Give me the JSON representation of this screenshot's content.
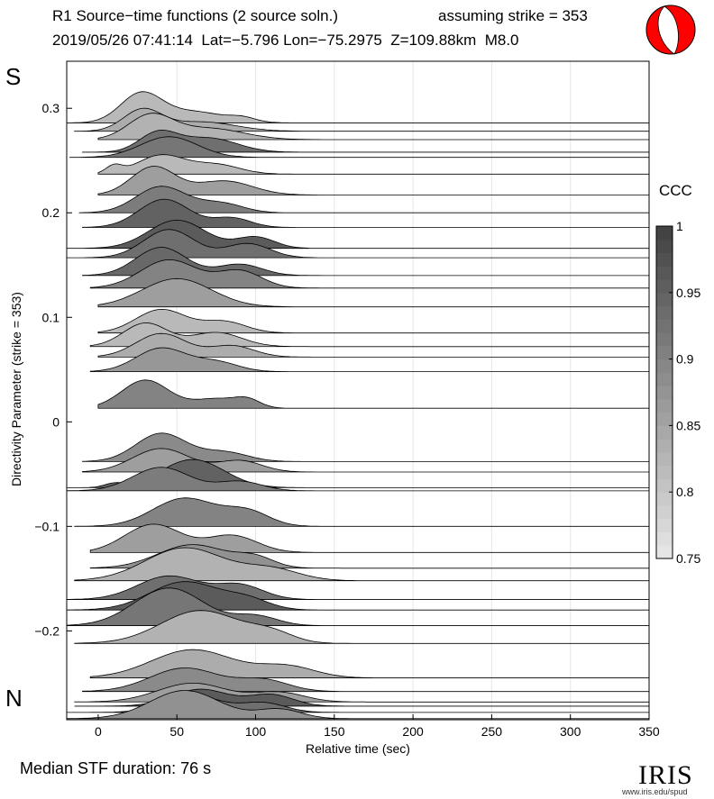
{
  "header": {
    "title": "R1 Source−time functions (2 source soln.)",
    "strike_note": "assuming strike = 353",
    "event_line": "2019/05/26 07:41:14  Lat=−5.796 Lon=−75.2975  Z=109.88km  M8.0"
  },
  "side_labels": {
    "top": "S",
    "bottom": "N"
  },
  "footer": {
    "median": "Median STF duration: 76 s"
  },
  "logo": {
    "text": "IRIS",
    "url": "www.iris.edu/spud"
  },
  "colorbar": {
    "title": "CCC",
    "min": 0.75,
    "max": 1.0,
    "ticks": [
      "0.75",
      "0.8",
      "0.85",
      "0.9",
      "0.95",
      "1"
    ],
    "colors": {
      "low": "#e8e8e8",
      "high": "#404040"
    }
  },
  "beachball": {
    "color": "#ff0000"
  },
  "chart_data": {
    "type": "area",
    "xlabel": "Relative time (sec)",
    "ylabel": "Directivity Parameter (strike = 353)",
    "xlim": [
      -20,
      350
    ],
    "ylim": [
      -0.285,
      0.345
    ],
    "xticks": [
      0,
      50,
      100,
      150,
      200,
      250,
      300,
      350
    ],
    "yticks": [
      -0.2,
      -0.1,
      0,
      0.1,
      0.2,
      0.3
    ],
    "ytick_labels": [
      "−0.2",
      "−0.1",
      "0",
      "0.1",
      "0.2",
      "0.3"
    ],
    "xtick_labels": [
      "0",
      "50",
      "100",
      "150",
      "200",
      "250",
      "300",
      "350"
    ],
    "series": [
      {
        "name": "stf1",
        "baseline": 0.286,
        "start": -20,
        "ccc": 0.82,
        "peaks": [
          [
            27,
            0.03,
            13
          ],
          [
            60,
            0.012,
            20
          ],
          [
            92,
            0.004,
            8
          ]
        ]
      },
      {
        "name": "stf2",
        "baseline": 0.278,
        "start": -15,
        "ccc": 0.84,
        "peaks": [
          [
            28,
            0.022,
            12
          ],
          [
            65,
            0.01,
            22
          ]
        ]
      },
      {
        "name": "stf3",
        "baseline": 0.27,
        "start": 0,
        "ccc": 0.83,
        "peaks": [
          [
            33,
            0.025,
            14
          ],
          [
            70,
            0.012,
            22
          ]
        ]
      },
      {
        "name": "stf4",
        "baseline": 0.258,
        "start": -10,
        "ccc": 0.93,
        "peaks": [
          [
            38,
            0.02,
            12
          ],
          [
            70,
            0.015,
            18
          ]
        ]
      },
      {
        "name": "stf5",
        "baseline": 0.253,
        "start": -18,
        "ccc": 0.92,
        "peaks": [
          [
            45,
            0.022,
            18
          ]
        ]
      },
      {
        "name": "stf6",
        "baseline": 0.237,
        "start": 0,
        "ccc": 0.82,
        "peaks": [
          [
            10,
            0.008,
            5
          ],
          [
            40,
            0.02,
            15
          ],
          [
            75,
            0.01,
            15
          ]
        ]
      },
      {
        "name": "stf7",
        "baseline": 0.217,
        "start": 0,
        "ccc": 0.86,
        "peaks": [
          [
            35,
            0.03,
            14
          ],
          [
            80,
            0.015,
            18
          ]
        ]
      },
      {
        "name": "stf8",
        "baseline": 0.2,
        "start": -12,
        "ccc": 0.91,
        "peaks": [
          [
            40,
            0.028,
            16
          ],
          [
            78,
            0.01,
            14
          ]
        ]
      },
      {
        "name": "stf9",
        "baseline": 0.186,
        "start": -10,
        "ccc": 0.95,
        "peaks": [
          [
            42,
            0.03,
            16
          ],
          [
            85,
            0.01,
            12
          ]
        ]
      },
      {
        "name": "stf10",
        "baseline": 0.166,
        "start": -20,
        "ccc": 0.96,
        "peaks": [
          [
            50,
            0.03,
            18
          ],
          [
            100,
            0.012,
            12
          ]
        ]
      },
      {
        "name": "stf11",
        "baseline": 0.157,
        "start": -20,
        "ccc": 0.93,
        "peaks": [
          [
            45,
            0.03,
            16
          ],
          [
            95,
            0.015,
            14
          ]
        ]
      },
      {
        "name": "stf12",
        "baseline": 0.14,
        "start": -10,
        "ccc": 0.94,
        "peaks": [
          [
            40,
            0.03,
            16
          ],
          [
            90,
            0.012,
            14
          ]
        ]
      },
      {
        "name": "stf13",
        "baseline": 0.128,
        "start": -5,
        "ccc": 0.9,
        "peaks": [
          [
            45,
            0.03,
            18
          ],
          [
            90,
            0.018,
            14
          ]
        ]
      },
      {
        "name": "stf14",
        "baseline": 0.11,
        "start": 0,
        "ccc": 0.86,
        "peaks": [
          [
            50,
            0.03,
            22
          ]
        ]
      },
      {
        "name": "stf15",
        "baseline": 0.085,
        "start": 0,
        "ccc": 0.82,
        "peaks": [
          [
            40,
            0.025,
            16
          ],
          [
            80,
            0.012,
            14
          ]
        ]
      },
      {
        "name": "stf16",
        "baseline": 0.072,
        "start": -5,
        "ccc": 0.82,
        "peaks": [
          [
            30,
            0.025,
            14
          ],
          [
            75,
            0.015,
            16
          ]
        ]
      },
      {
        "name": "stf17",
        "baseline": 0.062,
        "start": 0,
        "ccc": 0.84,
        "peaks": [
          [
            40,
            0.025,
            16
          ],
          [
            85,
            0.012,
            14
          ]
        ]
      },
      {
        "name": "stf18",
        "baseline": 0.048,
        "start": -5,
        "ccc": 0.87,
        "peaks": [
          [
            40,
            0.025,
            16
          ],
          [
            75,
            0.01,
            14
          ]
        ]
      },
      {
        "name": "stf19",
        "baseline": 0.013,
        "start": 0,
        "ccc": 0.9,
        "peaks": [
          [
            30,
            0.03,
            15
          ],
          [
            75,
            0.01,
            14
          ],
          [
            95,
            0.008,
            8
          ]
        ]
      },
      {
        "name": "stf20",
        "baseline": -0.038,
        "start": -10,
        "ccc": 0.89,
        "peaks": [
          [
            40,
            0.03,
            16
          ],
          [
            80,
            0.01,
            15
          ]
        ]
      },
      {
        "name": "stf21",
        "baseline": -0.048,
        "start": -10,
        "ccc": 0.86,
        "peaks": [
          [
            40,
            0.025,
            18
          ],
          [
            90,
            0.012,
            14
          ]
        ]
      },
      {
        "name": "stf22",
        "baseline": -0.063,
        "start": -20,
        "ccc": 0.95,
        "peaks": [
          [
            60,
            0.03,
            20
          ],
          [
            10,
            0.004,
            6
          ]
        ]
      },
      {
        "name": "stf23",
        "baseline": -0.066,
        "start": -20,
        "ccc": 0.91,
        "peaks": [
          [
            40,
            0.025,
            18
          ],
          [
            90,
            0.01,
            14
          ]
        ]
      },
      {
        "name": "stf24",
        "baseline": -0.1,
        "start": -15,
        "ccc": 0.9,
        "peaks": [
          [
            55,
            0.03,
            20
          ],
          [
            95,
            0.015,
            14
          ]
        ]
      },
      {
        "name": "stf25",
        "baseline": -0.125,
        "start": -5,
        "ccc": 0.86,
        "peaks": [
          [
            35,
            0.03,
            18
          ],
          [
            85,
            0.018,
            16
          ]
        ]
      },
      {
        "name": "stf26",
        "baseline": -0.14,
        "start": -5,
        "ccc": 0.88,
        "peaks": [
          [
            60,
            0.025,
            22
          ],
          [
            100,
            0.01,
            12
          ]
        ]
      },
      {
        "name": "stf27",
        "baseline": -0.152,
        "start": -15,
        "ccc": 0.83,
        "peaks": [
          [
            55,
            0.035,
            25
          ],
          [
            110,
            0.012,
            18
          ]
        ]
      },
      {
        "name": "stf28",
        "baseline": -0.17,
        "start": -20,
        "ccc": 0.93,
        "peaks": [
          [
            45,
            0.025,
            20
          ],
          [
            90,
            0.015,
            15
          ]
        ]
      },
      {
        "name": "stf29",
        "baseline": -0.18,
        "start": -20,
        "ccc": 0.96,
        "peaks": [
          [
            55,
            0.03,
            22
          ],
          [
            95,
            0.01,
            14
          ]
        ]
      },
      {
        "name": "stf30",
        "baseline": -0.195,
        "start": -20,
        "ccc": 0.92,
        "peaks": [
          [
            45,
            0.04,
            22
          ],
          [
            100,
            0.01,
            14
          ]
        ]
      },
      {
        "name": "stf31",
        "baseline": -0.212,
        "start": -15,
        "ccc": 0.83,
        "peaks": [
          [
            65,
            0.035,
            25
          ],
          [
            110,
            0.01,
            14
          ]
        ]
      },
      {
        "name": "stf32",
        "baseline": -0.245,
        "start": -5,
        "ccc": 0.84,
        "peaks": [
          [
            60,
            0.03,
            26
          ],
          [
            120,
            0.012,
            18
          ]
        ]
      },
      {
        "name": "stf33",
        "baseline": -0.258,
        "start": -10,
        "ccc": 0.89,
        "peaks": [
          [
            55,
            0.025,
            22
          ],
          [
            105,
            0.012,
            16
          ]
        ]
      },
      {
        "name": "stf34",
        "baseline": -0.268,
        "start": -15,
        "ccc": 0.86,
        "peaks": [
          [
            60,
            0.02,
            22
          ],
          [
            115,
            0.01,
            16
          ]
        ]
      },
      {
        "name": "stf35",
        "baseline": -0.272,
        "start": -15,
        "ccc": 0.96,
        "peaks": [
          [
            65,
            0.018,
            18
          ],
          [
            110,
            0.012,
            14
          ]
        ]
      },
      {
        "name": "stf36",
        "baseline": -0.278,
        "start": -20,
        "ccc": 0.93,
        "peaks": [
          [
            60,
            0.018,
            18
          ],
          [
            105,
            0.01,
            14
          ]
        ]
      },
      {
        "name": "stf37",
        "baseline": -0.284,
        "start": -20,
        "ccc": 0.88,
        "peaks": [
          [
            55,
            0.03,
            22
          ],
          [
            115,
            0.01,
            14
          ]
        ]
      }
    ]
  }
}
